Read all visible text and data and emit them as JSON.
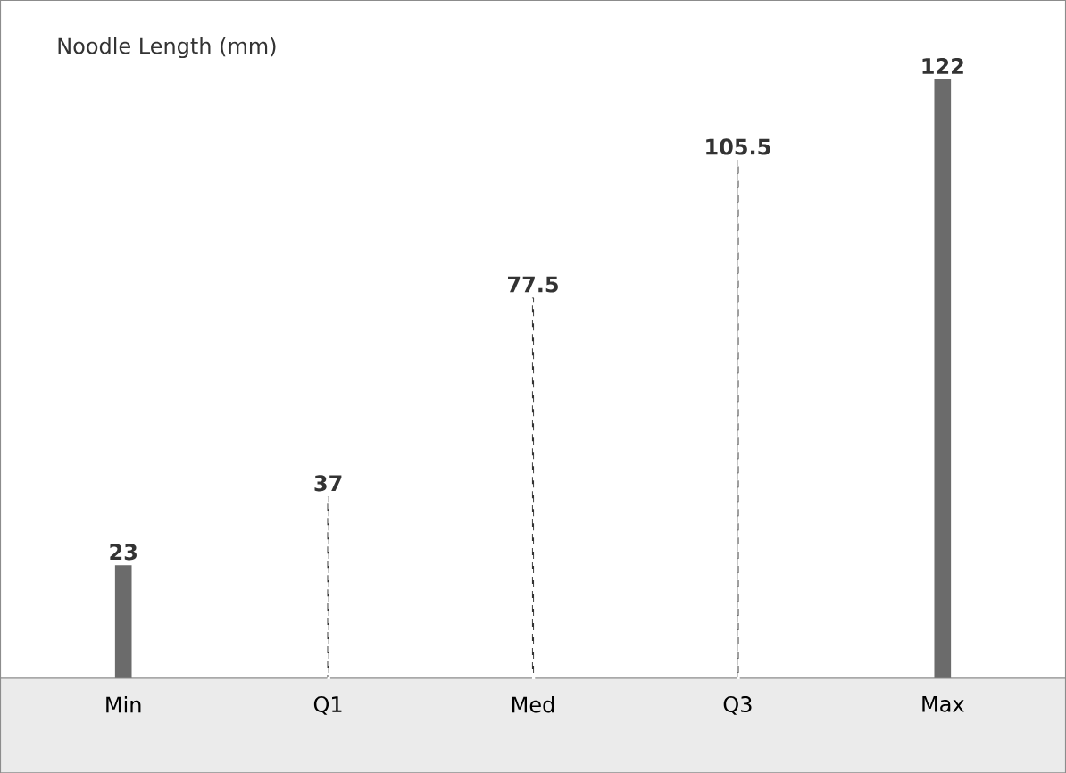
{
  "chart_data": {
    "type": "bar",
    "title": "Noodle Length (mm)",
    "categories": [
      "Min",
      "Q1",
      "Med",
      "Q3",
      "Max"
    ],
    "series": [
      {
        "color": "#6b6b6b",
        "values": [
          23,
          null,
          null,
          null,
          122
        ]
      },
      {
        "color": "#333333",
        "line_style": "dashed",
        "values": [
          null,
          37,
          77.5,
          105.5,
          null
        ]
      }
    ],
    "ylim": [
      0,
      138
    ],
    "data_labels": true,
    "tick_labels": "x"
  }
}
